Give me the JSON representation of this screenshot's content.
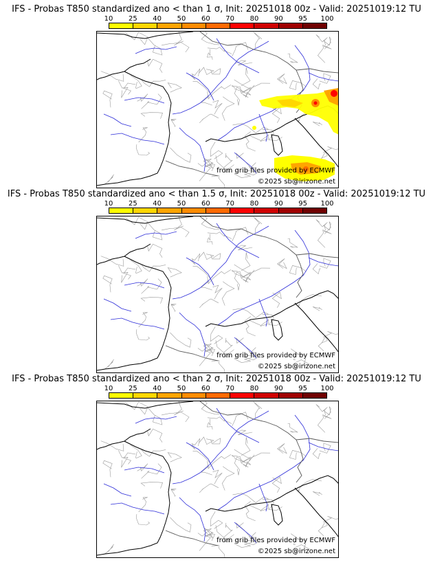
{
  "colors": [
    "#ffff00",
    "#ffd700",
    "#ffa500",
    "#ff8c00",
    "#ff6a00",
    "#ff0000",
    "#d00000",
    "#a00000",
    "#700000"
  ],
  "scale_ticks": [
    "10",
    "25",
    "40",
    "50",
    "60",
    "70",
    "80",
    "90",
    "95",
    "100"
  ],
  "credits": {
    "source": "from grib files provided by ECMWF",
    "copyright": "©2025 sb@irizone.net"
  },
  "panels": [
    {
      "title": "IFS - Probas T850  standardized ano < than 1 σ, Init: 20251018 00z - Valid: 20251019:12 TU",
      "has_anomaly": true
    },
    {
      "title": "IFS - Probas T850  standardized ano < than 1.5 σ, Init: 20251018 00z - Valid: 20251019:12 TU",
      "has_anomaly": false
    },
    {
      "title": "IFS - Probas T850  standardized ano < than 2 σ, Init: 20251018 00z - Valid: 20251019:12 TU",
      "has_anomaly": false
    }
  ]
}
